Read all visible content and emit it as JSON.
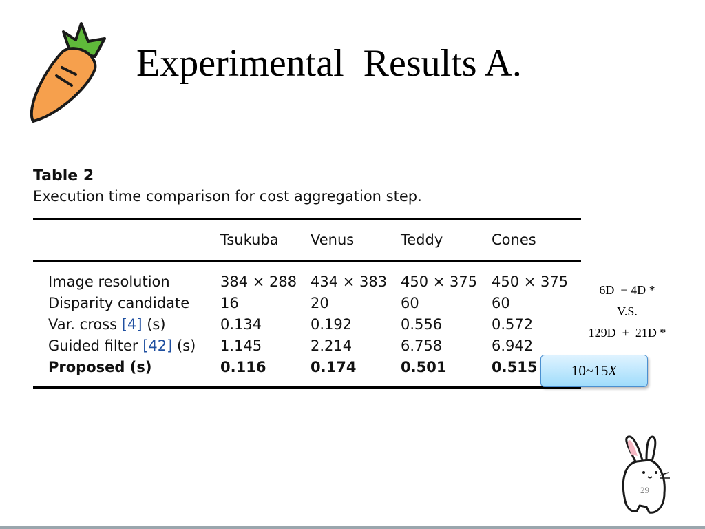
{
  "slide": {
    "title": "Experimental  Results A.",
    "page_number": "29"
  },
  "table": {
    "number": "Table 2",
    "caption": "Execution time comparison for cost aggregation step.",
    "columns": [
      "Tsukuba",
      "Venus",
      "Teddy",
      "Cones"
    ],
    "rows": [
      {
        "label": "Image resolution",
        "ref": "",
        "suffix": "",
        "values": [
          "384 × 288",
          "434 × 383",
          "450 × 375",
          "450 × 375"
        ],
        "bold": false
      },
      {
        "label": "Disparity candidate",
        "ref": "",
        "suffix": "",
        "values": [
          "16",
          "20",
          "60",
          "60"
        ],
        "bold": false
      },
      {
        "label": "Var. cross",
        "ref": "[4]",
        "suffix": "(s)",
        "values": [
          "0.134",
          "0.192",
          "0.556",
          "0.572"
        ],
        "bold": false
      },
      {
        "label": "Guided filter",
        "ref": "[42]",
        "suffix": "(s)",
        "values": [
          "1.145",
          "2.214",
          "6.758",
          "6.942"
        ],
        "bold": false
      },
      {
        "label": "Proposed (s)",
        "ref": "",
        "suffix": "",
        "values": [
          "0.116",
          "0.174",
          "0.501",
          "0.515"
        ],
        "bold": true
      }
    ]
  },
  "annotation": {
    "line1": "6D  + 4D *",
    "line2": "V.S.",
    "line3": "129D  +  21D *",
    "speedup_value": "10~15",
    "speedup_unit": "X"
  },
  "colors": {
    "reference_link": "#1f4fa0",
    "speedup_box": "#9fdcfb",
    "carrot_body": "#f6a04d",
    "carrot_leaves": "#5fb93a"
  },
  "icons": [
    "carrot-icon",
    "bunny-icon"
  ]
}
